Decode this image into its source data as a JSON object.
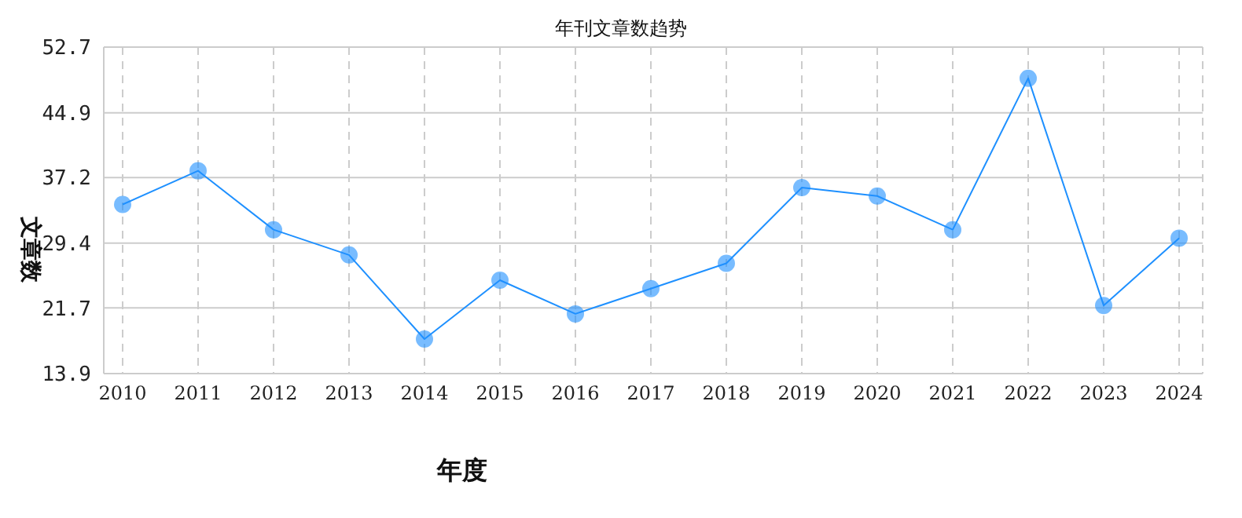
{
  "chart_data": {
    "type": "line",
    "title": "年刊文章数趋势",
    "xlabel": "年度",
    "ylabel": "文章数",
    "categories": [
      "2010",
      "2011",
      "2012",
      "2013",
      "2014",
      "2015",
      "2016",
      "2017",
      "2018",
      "2019",
      "2020",
      "2021",
      "2022",
      "2023",
      "2024"
    ],
    "series": [
      {
        "color": "#1e90ff",
        "values": [
          34,
          38,
          31,
          28,
          18,
          25,
          21,
          24,
          27,
          36,
          35,
          31,
          49,
          22,
          30
        ]
      }
    ],
    "ylim": [
      13.9,
      52.7
    ],
    "yticks": [
      13.9,
      21.7,
      29.4,
      37.2,
      44.9,
      52.7
    ],
    "grid": true,
    "legend": false,
    "marker": "circle",
    "line_style": "solid"
  }
}
